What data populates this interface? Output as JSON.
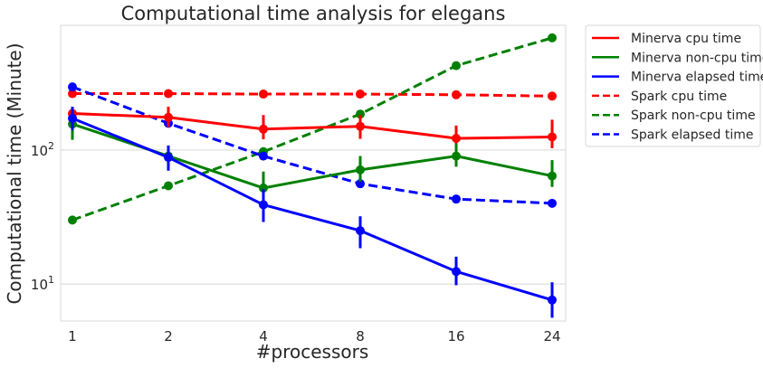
{
  "chart_data": {
    "type": "line",
    "title": "Computational time analysis for elegans",
    "xlabel": "#processors",
    "ylabel": "Computational time (Minute)",
    "categories": [
      "1",
      "2",
      "4",
      "8",
      "16",
      "24"
    ],
    "y_scale": "log",
    "ylim": [
      5.3,
      850
    ],
    "y_ticks": [
      {
        "value": 10,
        "label": "10",
        "sup": "1"
      },
      {
        "value": 100,
        "label": "10",
        "sup": "2"
      }
    ],
    "grid": "horizontal",
    "legend_placement": "outside-right",
    "series": [
      {
        "name": "Minerva cpu time",
        "color": "#ff0000",
        "style": "solid",
        "marker": "circle",
        "values": [
          187,
          175,
          143,
          150,
          122,
          125
        ],
        "error_low": [
          162,
          148,
          120,
          121,
          104,
          103
        ],
        "error_high": [
          210,
          210,
          182,
          182,
          152,
          168
        ]
      },
      {
        "name": "Minerva non-cpu time",
        "color": "#008000",
        "style": "solid",
        "marker": "circle",
        "values": [
          156,
          90,
          52,
          71,
          90,
          64
        ],
        "error_low": [
          119,
          75,
          42,
          58,
          75,
          53
        ],
        "error_high": [
          190,
          106,
          69,
          90,
          112,
          84
        ]
      },
      {
        "name": "Minerva elapsed time",
        "color": "#0000ff",
        "style": "solid",
        "marker": "circle",
        "values": [
          172,
          88,
          39,
          25,
          12.4,
          7.6
        ],
        "error_low": [
          140,
          70,
          29,
          18.5,
          9.8,
          5.6
        ],
        "error_high": [
          210,
          108,
          51,
          32,
          16,
          10.3
        ]
      },
      {
        "name": "Spark cpu time",
        "color": "#ff0000",
        "style": "dashed",
        "marker": "circle",
        "values": [
          263,
          263,
          261,
          261,
          258,
          252
        ]
      },
      {
        "name": "Spark non-cpu time",
        "color": "#008000",
        "style": "dashed",
        "marker": "circle",
        "values": [
          30,
          54,
          97,
          185,
          425,
          685
        ]
      },
      {
        "name": "Spark elapsed time",
        "color": "#0000ff",
        "style": "dashed",
        "marker": "circle",
        "values": [
          295,
          158,
          90,
          56,
          43,
          40
        ]
      }
    ]
  }
}
